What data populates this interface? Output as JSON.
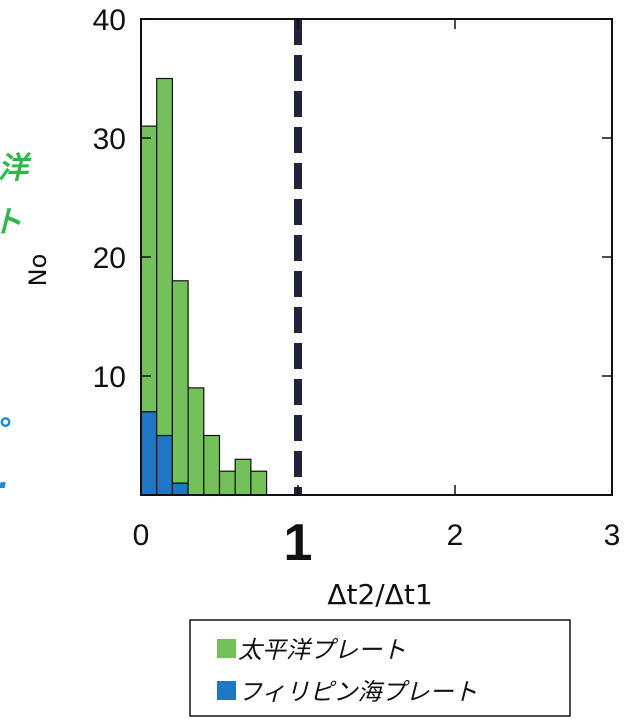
{
  "chart_data": {
    "type": "bar",
    "stacked": true,
    "xlabel": "Δt2/Δt1",
    "ylabel": "No",
    "xlim": [
      0,
      3
    ],
    "ylim": [
      0,
      40
    ],
    "xticks": [
      "0",
      "1",
      "2",
      "3"
    ],
    "yticks": [
      "10",
      "20",
      "30",
      "40"
    ],
    "bin_width": 0.1,
    "bin_starts": [
      0.0,
      0.1,
      0.2,
      0.3,
      0.4,
      0.5,
      0.6,
      0.7
    ],
    "series": [
      {
        "name": "フィリピン海プレート",
        "color": "#1f77c4",
        "values": [
          7,
          5,
          1,
          0,
          0,
          0,
          0,
          0
        ]
      },
      {
        "name": "太平洋プレート",
        "color": "#74c05a",
        "values": [
          24,
          30,
          17,
          9,
          5,
          2,
          3,
          2
        ]
      }
    ],
    "reference_line": {
      "x": 1,
      "style": "dashed",
      "color": "#22223a"
    },
    "grid": false,
    "legend": "bottom"
  },
  "side_labels": {
    "top": {
      "text": "洋\nト",
      "color": "#2db84a"
    },
    "bottom": {
      "text": "°\n.",
      "color": "#1f8ad0"
    }
  }
}
